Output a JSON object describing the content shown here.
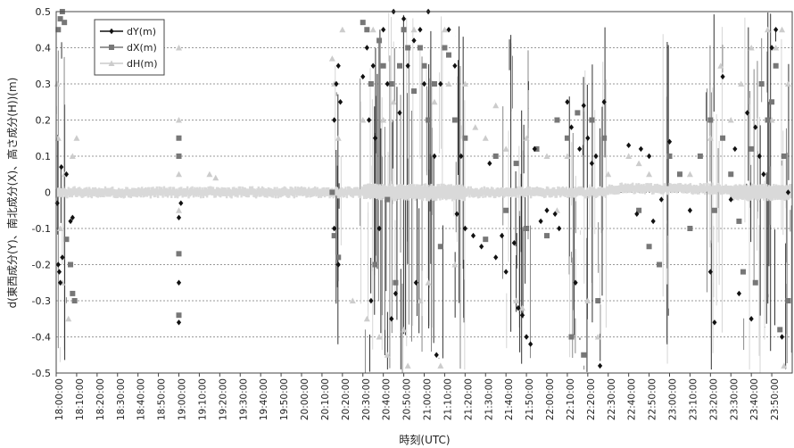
{
  "chart_data": {
    "type": "scatter",
    "xlabel": "時刻(UTC)",
    "ylabel": "d(東西成分(Y)、南北成分(X)、高さ成分(H))(m)",
    "ylim": [
      -0.5,
      0.5
    ],
    "yticks": [
      "0.5",
      "0.4",
      "0.3",
      "0.2",
      "0.1",
      "0",
      "-0.1",
      "-0.2",
      "-0.3",
      "-0.4",
      "-0.5"
    ],
    "xticks": [
      "18:00:00",
      "18:10:00",
      "18:20:00",
      "18:30:00",
      "18:40:00",
      "18:50:00",
      "19:00:00",
      "19:10:00",
      "19:20:00",
      "19:30:00",
      "19:40:00",
      "19:50:00",
      "20:00:00",
      "20:10:00",
      "20:20:00",
      "20:30:00",
      "20:40:00",
      "20:50:00",
      "21:00:00",
      "21:10:00",
      "21:20:00",
      "21:30:00",
      "21:40:00",
      "21:50:00",
      "22:00:00",
      "22:10:00",
      "22:20:00",
      "22:30:00",
      "22:40:00",
      "22:50:00",
      "23:00:00",
      "23:10:00",
      "23:20:00",
      "23:30:00",
      "23:40:00",
      "23:50:00"
    ],
    "xlim_minutes": [
      0,
      360
    ],
    "grid": "horizontal dashed",
    "legend_position": "top-left",
    "series": [
      {
        "name": "dY(m)",
        "color": "#111111",
        "marker": "diamond",
        "points": [
          [
            0.5,
            -0.03
          ],
          [
            1,
            -0.2
          ],
          [
            1.5,
            -0.22
          ],
          [
            2,
            -0.25
          ],
          [
            2.5,
            0.07
          ],
          [
            3,
            -0.18
          ],
          [
            5,
            0.05
          ],
          [
            7,
            -0.08
          ],
          [
            8,
            -0.07
          ],
          [
            60,
            -0.07
          ],
          [
            60,
            -0.25
          ],
          [
            60,
            -0.36
          ],
          [
            61,
            -0.03
          ],
          [
            136,
            0.2
          ],
          [
            137,
            0.3
          ],
          [
            138,
            0.35
          ],
          [
            139,
            0.25
          ],
          [
            136,
            -0.1
          ],
          [
            138,
            -0.2
          ],
          [
            150,
            0.32
          ],
          [
            152,
            0.4
          ],
          [
            153,
            0.2
          ],
          [
            154,
            -0.3
          ],
          [
            155,
            0.35
          ],
          [
            156,
            0.15
          ],
          [
            158,
            -0.1
          ],
          [
            160,
            0.45
          ],
          [
            162,
            0.3
          ],
          [
            164,
            -0.35
          ],
          [
            165,
            0.5
          ],
          [
            166,
            -0.28
          ],
          [
            168,
            0.22
          ],
          [
            170,
            0.48
          ],
          [
            172,
            0.35
          ],
          [
            175,
            0.42
          ],
          [
            176,
            -0.25
          ],
          [
            178,
            0.45
          ],
          [
            180,
            0.3
          ],
          [
            182,
            0.5
          ],
          [
            185,
            0.1
          ],
          [
            186,
            -0.45
          ],
          [
            188,
            0.3
          ],
          [
            192,
            0.45
          ],
          [
            195,
            0.35
          ],
          [
            196,
            -0.06
          ],
          [
            198,
            0.1
          ],
          [
            200,
            -0.1
          ],
          [
            204,
            -0.12
          ],
          [
            208,
            -0.15
          ],
          [
            212,
            0.08
          ],
          [
            215,
            -0.18
          ],
          [
            218,
            -0.12
          ],
          [
            220,
            -0.22
          ],
          [
            224,
            -0.14
          ],
          [
            226,
            -0.32
          ],
          [
            228,
            -0.34
          ],
          [
            230,
            -0.4
          ],
          [
            232,
            -0.42
          ],
          [
            234,
            0.12
          ],
          [
            237,
            -0.08
          ],
          [
            240,
            -0.05
          ],
          [
            244,
            -0.06
          ],
          [
            246,
            -0.1
          ],
          [
            250,
            0.25
          ],
          [
            252,
            0.18
          ],
          [
            254,
            -0.25
          ],
          [
            256,
            0.12
          ],
          [
            258,
            0.24
          ],
          [
            260,
            0.15
          ],
          [
            262,
            0.08
          ],
          [
            264,
            0.1
          ],
          [
            266,
            -0.48
          ],
          [
            268,
            0.25
          ],
          [
            280,
            0.13
          ],
          [
            284,
            -0.06
          ],
          [
            286,
            0.12
          ],
          [
            290,
            0.1
          ],
          [
            292,
            -0.08
          ],
          [
            296,
            -0.02
          ],
          [
            300,
            0.14
          ],
          [
            310,
            -0.05
          ],
          [
            320,
            -0.22
          ],
          [
            322,
            -0.36
          ],
          [
            326,
            0.32
          ],
          [
            330,
            -0.02
          ],
          [
            332,
            0.12
          ],
          [
            334,
            -0.28
          ],
          [
            338,
            0.22
          ],
          [
            340,
            -0.35
          ],
          [
            342,
            0.18
          ],
          [
            344,
            0.1
          ],
          [
            346,
            0.05
          ],
          [
            350,
            0.4
          ],
          [
            352,
            0.45
          ],
          [
            355,
            -0.4
          ],
          [
            358,
            0.0
          ]
        ]
      },
      {
        "name": "dX(m)",
        "color": "#777777",
        "marker": "square",
        "points": [
          [
            1,
            0.45
          ],
          [
            2,
            0.48
          ],
          [
            3,
            0.5
          ],
          [
            4,
            0.47
          ],
          [
            5,
            -0.13
          ],
          [
            7,
            -0.2
          ],
          [
            8,
            -0.28
          ],
          [
            9,
            -0.3
          ],
          [
            60,
            0.15
          ],
          [
            60,
            0.1
          ],
          [
            60,
            -0.17
          ],
          [
            60,
            -0.34
          ],
          [
            135,
            0.0
          ],
          [
            136,
            -0.12
          ],
          [
            138,
            -0.18
          ],
          [
            150,
            0.47
          ],
          [
            152,
            0.45
          ],
          [
            154,
            0.3
          ],
          [
            156,
            -0.2
          ],
          [
            158,
            0.42
          ],
          [
            160,
            0.35
          ],
          [
            162,
            -0.02
          ],
          [
            164,
            0.3
          ],
          [
            166,
            -0.25
          ],
          [
            168,
            0.35
          ],
          [
            170,
            0.45
          ],
          [
            172,
            0.4
          ],
          [
            175,
            0.28
          ],
          [
            178,
            0.4
          ],
          [
            180,
            0.35
          ],
          [
            182,
            0.2
          ],
          [
            185,
            0.3
          ],
          [
            188,
            -0.15
          ],
          [
            190,
            0.4
          ],
          [
            192,
            0.38
          ],
          [
            195,
            0.2
          ],
          [
            200,
            0.15
          ],
          [
            210,
            -0.13
          ],
          [
            215,
            0.1
          ],
          [
            220,
            -0.05
          ],
          [
            225,
            0.08
          ],
          [
            230,
            -0.1
          ],
          [
            235,
            0.12
          ],
          [
            240,
            -0.12
          ],
          [
            245,
            0.2
          ],
          [
            250,
            0.15
          ],
          [
            252,
            -0.4
          ],
          [
            255,
            0.22
          ],
          [
            258,
            -0.45
          ],
          [
            262,
            0.2
          ],
          [
            265,
            -0.3
          ],
          [
            268,
            0.15
          ],
          [
            285,
            -0.05
          ],
          [
            290,
            -0.15
          ],
          [
            295,
            -0.2
          ],
          [
            300,
            0.1
          ],
          [
            305,
            0.05
          ],
          [
            310,
            -0.1
          ],
          [
            315,
            0.1
          ],
          [
            320,
            0.2
          ],
          [
            322,
            -0.05
          ],
          [
            326,
            0.15
          ],
          [
            330,
            0.05
          ],
          [
            334,
            -0.08
          ],
          [
            336,
            -0.22
          ],
          [
            340,
            0.12
          ],
          [
            342,
            -0.25
          ],
          [
            345,
            0.3
          ],
          [
            348,
            0.2
          ],
          [
            350,
            0.25
          ],
          [
            352,
            0.35
          ],
          [
            354,
            -0.38
          ],
          [
            356,
            0.1
          ],
          [
            358,
            -0.3
          ]
        ]
      },
      {
        "name": "dH(m)",
        "color": "#cccccc",
        "marker": "triangle",
        "points": [
          [
            0.5,
            0.3
          ],
          [
            1,
            0.15
          ],
          [
            2,
            -0.1
          ],
          [
            3,
            -0.25
          ],
          [
            4,
            0.05
          ],
          [
            6,
            -0.35
          ],
          [
            8,
            0.1
          ],
          [
            10,
            0.15
          ],
          [
            60,
            0.4
          ],
          [
            60,
            0.2
          ],
          [
            60,
            0.05
          ],
          [
            60,
            -0.05
          ],
          [
            75,
            0.05
          ],
          [
            78,
            0.04
          ],
          [
            135,
            0.37
          ],
          [
            136,
            0.3
          ],
          [
            138,
            0.15
          ],
          [
            140,
            0.45
          ],
          [
            145,
            -0.3
          ],
          [
            150,
            0.2
          ],
          [
            152,
            -0.35
          ],
          [
            155,
            0.45
          ],
          [
            158,
            -0.4
          ],
          [
            160,
            0.2
          ],
          [
            162,
            -0.45
          ],
          [
            165,
            0.25
          ],
          [
            170,
            -0.38
          ],
          [
            172,
            -0.48
          ],
          [
            175,
            0.45
          ],
          [
            178,
            -0.3
          ],
          [
            180,
            0.35
          ],
          [
            182,
            -0.25
          ],
          [
            185,
            0.25
          ],
          [
            188,
            -0.48
          ],
          [
            190,
            0.45
          ],
          [
            192,
            0.3
          ],
          [
            195,
            -0.2
          ],
          [
            200,
            0.3
          ],
          [
            205,
            0.18
          ],
          [
            210,
            0.15
          ],
          [
            215,
            0.24
          ],
          [
            220,
            0.12
          ],
          [
            225,
            -0.3
          ],
          [
            228,
            -0.32
          ],
          [
            230,
            0.15
          ],
          [
            235,
            0.12
          ],
          [
            240,
            0.1
          ],
          [
            245,
            -0.05
          ],
          [
            250,
            0.1
          ],
          [
            260,
            -0.3
          ],
          [
            265,
            -0.4
          ],
          [
            270,
            0.05
          ],
          [
            280,
            0.1
          ],
          [
            285,
            0.08
          ],
          [
            290,
            0.05
          ],
          [
            300,
            0.1
          ],
          [
            310,
            0.05
          ],
          [
            320,
            0.15
          ],
          [
            325,
            0.35
          ],
          [
            330,
            0.2
          ],
          [
            335,
            0.3
          ],
          [
            340,
            0.4
          ],
          [
            345,
            0.3
          ],
          [
            348,
            0.45
          ],
          [
            350,
            0.2
          ],
          [
            352,
            0.4
          ],
          [
            355,
            0.45
          ],
          [
            356,
            -0.48
          ],
          [
            358,
            0.3
          ]
        ]
      }
    ]
  }
}
